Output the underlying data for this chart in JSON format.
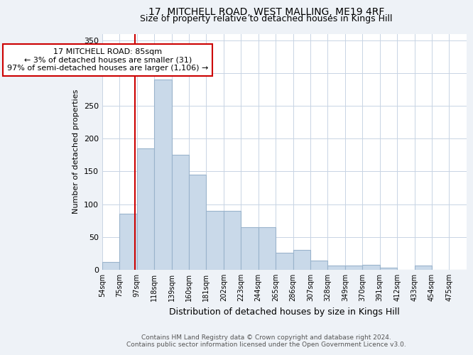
{
  "title": "17, MITCHELL ROAD, WEST MALLING, ME19 4RF",
  "subtitle": "Size of property relative to detached houses in Kings Hill",
  "xlabel": "Distribution of detached houses by size in Kings Hill",
  "ylabel": "Number of detached properties",
  "bin_labels": [
    "54sqm",
    "75sqm",
    "97sqm",
    "118sqm",
    "139sqm",
    "160sqm",
    "181sqm",
    "202sqm",
    "223sqm",
    "244sqm",
    "265sqm",
    "286sqm",
    "307sqm",
    "328sqm",
    "349sqm",
    "370sqm",
    "391sqm",
    "412sqm",
    "433sqm",
    "454sqm",
    "475sqm"
  ],
  "bar_heights": [
    12,
    85,
    185,
    290,
    175,
    145,
    90,
    90,
    65,
    65,
    26,
    30,
    14,
    6,
    7,
    8,
    3,
    0,
    6,
    0,
    0
  ],
  "bar_color": "#c9d9e9",
  "bar_edge_color": "#9ab4cc",
  "red_line_x": 1.88,
  "annotation_text": "17 MITCHELL ROAD: 85sqm\n← 3% of detached houses are smaller (31)\n97% of semi-detached houses are larger (1,106) →",
  "annotation_box_color": "#ffffff",
  "annotation_box_edge": "#cc0000",
  "ylim": [
    0,
    360
  ],
  "yticks": [
    0,
    50,
    100,
    150,
    200,
    250,
    300,
    350
  ],
  "footer": "Contains HM Land Registry data © Crown copyright and database right 2024.\nContains public sector information licensed under the Open Government Licence v3.0.",
  "bg_color": "#eef2f7",
  "plot_bg_color": "#ffffff",
  "grid_color": "#c8d4e4"
}
